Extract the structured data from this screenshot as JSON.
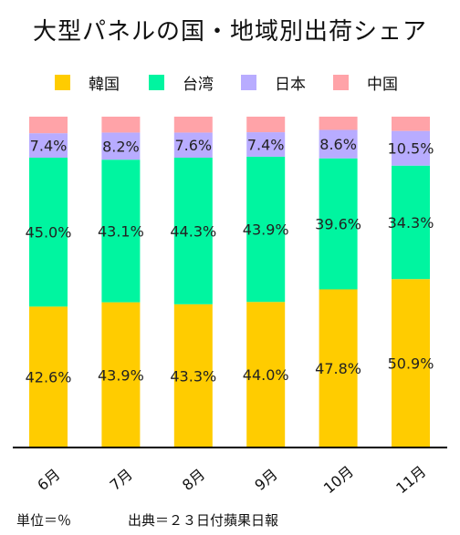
{
  "chart_data": {
    "type": "bar",
    "stacked": true,
    "title": "大型パネルの国・地域別出荷シェア",
    "categories": [
      "6月",
      "7月",
      "8月",
      "9月",
      "10月",
      "11月"
    ],
    "series": [
      {
        "name": "韓国",
        "color": "#FFCC00",
        "values": [
          42.6,
          43.9,
          43.3,
          44.0,
          47.8,
          50.9
        ]
      },
      {
        "name": "台湾",
        "color": "#00F5A0",
        "values": [
          45.0,
          43.1,
          44.3,
          43.9,
          39.6,
          34.3
        ]
      },
      {
        "name": "日本",
        "color": "#B8ACFF",
        "values": [
          7.4,
          8.2,
          7.6,
          7.4,
          8.6,
          10.5
        ]
      },
      {
        "name": "中国",
        "color": "#FFA3A8",
        "values": [
          5.0,
          4.8,
          4.8,
          4.7,
          4.0,
          4.3
        ]
      }
    ],
    "labels": [
      [
        "42.6%",
        "43.9%",
        "43.3%",
        "44.0%",
        "47.8%",
        "50.9%"
      ],
      [
        "45.0%",
        "43.1%",
        "44.3%",
        "43.9%",
        "39.6%",
        "34.3%"
      ],
      [
        "7.4%",
        "8.2%",
        "7.6%",
        "7.4%",
        "8.6%",
        "10.5%"
      ]
    ],
    "ylim": [
      0,
      100
    ],
    "legend_position": "top",
    "grid": false
  },
  "footer": {
    "unit": "単位＝％",
    "source": "出典＝２３日付蘋果日報"
  }
}
